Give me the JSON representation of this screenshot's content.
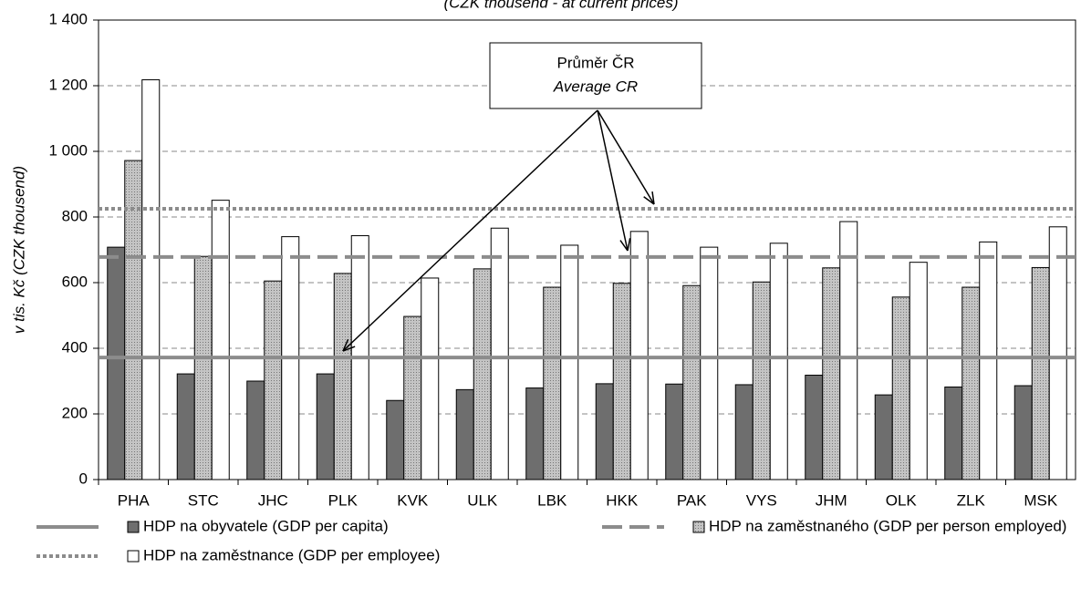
{
  "chart_data": {
    "type": "bar",
    "subtitle": "(CZK thousend - at current prices)",
    "ylabel": "v tis. Kč (CZK thousend)",
    "annotation": [
      "Průměr ČR",
      "Average CR"
    ],
    "categories": [
      "PHA",
      "STC",
      "JHC",
      "PLK",
      "KVK",
      "ULK",
      "LBK",
      "HKK",
      "PAK",
      "VYS",
      "JHM",
      "OLK",
      "ZLK",
      "MSK"
    ],
    "series": [
      {
        "name": "HDP na obyvatele (GDP per capita)",
        "color": "#6e6e6e",
        "fill_style": "solid",
        "line_style": "solid",
        "average": 372,
        "values": [
          708,
          322,
          300,
          322,
          241,
          274,
          279,
          292,
          291,
          289,
          318,
          258,
          282,
          286
        ]
      },
      {
        "name": "HDP na zaměstnaného (GDP per person employed)",
        "color": "#c4c4c4",
        "fill_style": "dotted",
        "line_style": "dashed",
        "average": 678,
        "values": [
          972,
          680,
          605,
          628,
          497,
          642,
          586,
          598,
          591,
          602,
          645,
          556,
          586,
          646
        ]
      },
      {
        "name": "HDP na zaměstnance (GDP per employee)",
        "color": "#ffffff",
        "fill_style": "solid",
        "line_style": "dotted",
        "average": 825,
        "values": [
          1218,
          851,
          740,
          743,
          614,
          766,
          714,
          756,
          708,
          720,
          786,
          662,
          724,
          770
        ]
      }
    ],
    "average_line_color": "#8c8c8c",
    "ylim": [
      0,
      1400
    ],
    "yticks": [
      0,
      200,
      400,
      600,
      800,
      {
        "value": 1000,
        "label": "1 000"
      },
      {
        "value": 1200,
        "label": "1 200"
      },
      {
        "value": 1400,
        "label": "1 400"
      }
    ],
    "grid": true
  }
}
